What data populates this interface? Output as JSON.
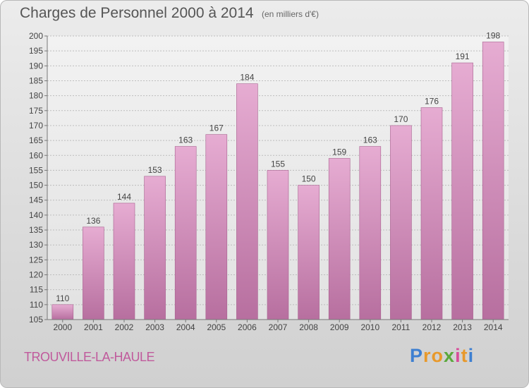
{
  "header": {
    "title": "Charges de Personnel 2000 à 2014",
    "subtitle": "(en milliers d'€)"
  },
  "footer": {
    "commune": "TROUVILLE-LA-HAULE",
    "logo_letters": [
      "P",
      "r",
      "o",
      "x",
      "i",
      "t",
      "i"
    ],
    "logo_colors": [
      "#3d7fd1",
      "#e8992b",
      "#e8992b",
      "#5aa83c",
      "#d84c9a",
      "#e8992b",
      "#3d7fd1"
    ]
  },
  "colors": {
    "bar": "#c987b4",
    "bar_light": "#e3a9cf",
    "axis_text": "#444444",
    "gridline": "#bdbdbd"
  },
  "chart_data": {
    "type": "bar",
    "title": "Charges de Personnel 2000 à 2014",
    "subtitle": "(en milliers d'€)",
    "categories": [
      "2000",
      "2001",
      "2002",
      "2003",
      "2004",
      "2005",
      "2006",
      "2007",
      "2008",
      "2009",
      "2010",
      "2011",
      "2012",
      "2013",
      "2014"
    ],
    "values": [
      110,
      136,
      144,
      153,
      163,
      167,
      184,
      155,
      150,
      159,
      163,
      170,
      176,
      191,
      198
    ],
    "ylim": [
      105,
      200
    ],
    "yticks": [
      105,
      110,
      115,
      120,
      125,
      130,
      135,
      140,
      145,
      150,
      155,
      160,
      165,
      170,
      175,
      180,
      185,
      190,
      195,
      200
    ],
    "grid": true,
    "xlabel": "",
    "ylabel": ""
  }
}
